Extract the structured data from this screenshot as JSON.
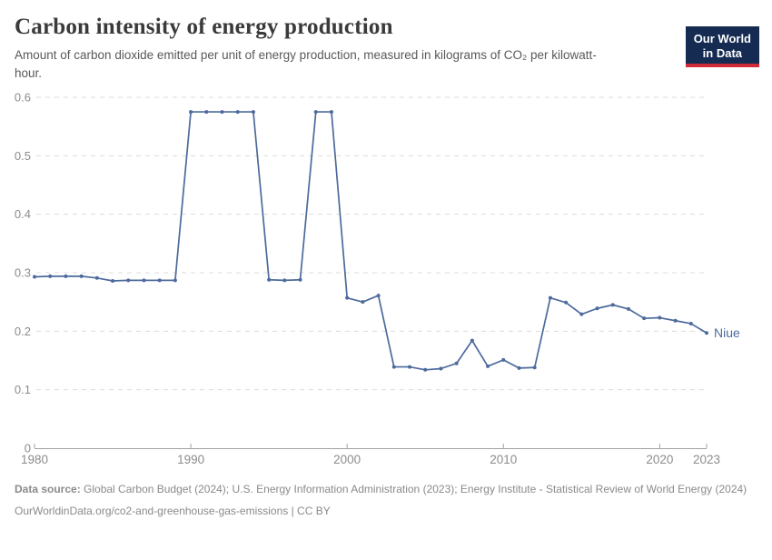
{
  "header": {
    "title": "Carbon intensity of energy production",
    "subtitle": "Amount of carbon dioxide emitted per unit of energy production, measured in kilograms of CO₂ per kilowatt-hour.",
    "logo": {
      "line1": "Our World",
      "line2": "in Data",
      "bg_color": "#152b52",
      "accent_color": "#ce2b36"
    }
  },
  "chart_data": {
    "type": "line",
    "title": "Carbon intensity of energy production",
    "xlabel": "",
    "ylabel": "",
    "xlim": [
      1980,
      2023
    ],
    "ylim": [
      0,
      0.6
    ],
    "x_ticks": [
      1980,
      1990,
      2000,
      2010,
      2020,
      2023
    ],
    "y_ticks": [
      0,
      0.1,
      0.2,
      0.3,
      0.4,
      0.5,
      0.6
    ],
    "grid": "horizontal-dashed",
    "legend_position": "end-of-line-label",
    "axis_color": "#a3a3a3",
    "grid_color": "#dcdcdc",
    "tick_label_color": "#8c8c8c",
    "series": [
      {
        "name": "Niue",
        "color": "#4C6A9C",
        "x": [
          1980,
          1981,
          1982,
          1983,
          1984,
          1985,
          1986,
          1987,
          1988,
          1989,
          1990,
          1991,
          1992,
          1993,
          1994,
          1995,
          1996,
          1997,
          1998,
          1999,
          2000,
          2001,
          2002,
          2003,
          2004,
          2005,
          2006,
          2007,
          2008,
          2009,
          2010,
          2011,
          2012,
          2013,
          2014,
          2015,
          2016,
          2017,
          2018,
          2019,
          2020,
          2021,
          2022,
          2023
        ],
        "values": [
          0.293,
          0.294,
          0.294,
          0.294,
          0.291,
          0.286,
          0.287,
          0.287,
          0.287,
          0.287,
          0.575,
          0.575,
          0.575,
          0.575,
          0.575,
          0.288,
          0.287,
          0.288,
          0.575,
          0.575,
          0.257,
          0.25,
          0.261,
          0.139,
          0.139,
          0.134,
          0.136,
          0.145,
          0.184,
          0.14,
          0.151,
          0.137,
          0.138,
          0.257,
          0.249,
          0.229,
          0.239,
          0.245,
          0.238,
          0.222,
          0.223,
          0.218,
          0.213,
          0.197
        ]
      }
    ]
  },
  "footer": {
    "source_label": "Data source:",
    "source_text": " Global Carbon Budget (2024); U.S. Energy Information Administration (2023); Energy Institute - Statistical Review of World Energy (2024)",
    "link_line": "OurWorldinData.org/co2-and-greenhouse-gas-emissions | CC BY"
  }
}
